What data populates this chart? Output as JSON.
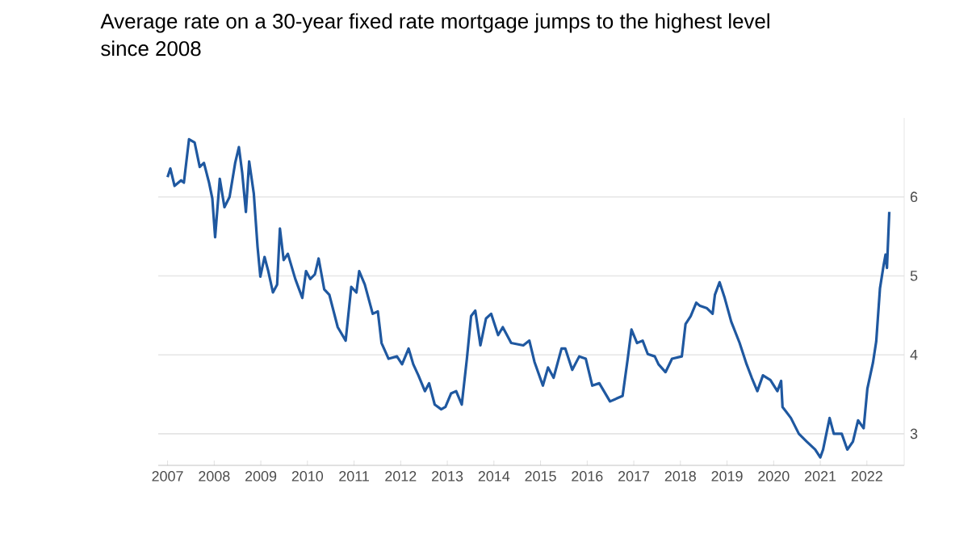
{
  "chart_data": {
    "type": "line",
    "title": "Average rate on a 30-year fixed rate mortgage jumps to the highest level since 2008",
    "xlim": [
      2006.8,
      2022.8
    ],
    "xticks": [
      2007,
      2008,
      2009,
      2010,
      2011,
      2012,
      2013,
      2014,
      2015,
      2016,
      2017,
      2018,
      2019,
      2020,
      2021,
      2022
    ],
    "ylim": [
      2.6,
      7.0
    ],
    "yticks": [
      3,
      4,
      5,
      6
    ],
    "grid": "y",
    "marker": "none",
    "line_style": "solid",
    "series": [
      {
        "color": "#1f58a0",
        "x": [
          2007.0,
          2007.06,
          2007.15,
          2007.29,
          2007.35,
          2007.46,
          2007.58,
          2007.69,
          2007.78,
          2007.89,
          2007.96,
          2008.02,
          2008.12,
          2008.22,
          2008.33,
          2008.45,
          2008.53,
          2008.6,
          2008.68,
          2008.75,
          2008.85,
          2008.93,
          2008.99,
          2009.08,
          2009.16,
          2009.26,
          2009.35,
          2009.41,
          2009.49,
          2009.58,
          2009.74,
          2009.89,
          2009.97,
          2010.06,
          2010.16,
          2010.24,
          2010.36,
          2010.47,
          2010.65,
          2010.82,
          2010.94,
          2011.05,
          2011.11,
          2011.23,
          2011.4,
          2011.51,
          2011.59,
          2011.74,
          2011.92,
          2012.03,
          2012.17,
          2012.27,
          2012.38,
          2012.52,
          2012.61,
          2012.73,
          2012.87,
          2012.96,
          2013.08,
          2013.19,
          2013.31,
          2013.42,
          2013.51,
          2013.6,
          2013.71,
          2013.83,
          2013.94,
          2014.09,
          2014.19,
          2014.37,
          2014.63,
          2014.76,
          2014.87,
          2015.05,
          2015.16,
          2015.28,
          2015.45,
          2015.53,
          2015.68,
          2015.83,
          2015.97,
          2016.11,
          2016.26,
          2016.49,
          2016.76,
          2016.87,
          2016.95,
          2017.07,
          2017.19,
          2017.3,
          2017.45,
          2017.53,
          2017.68,
          2017.82,
          2018.03,
          2018.11,
          2018.22,
          2018.34,
          2018.42,
          2018.57,
          2018.69,
          2018.74,
          2018.84,
          2018.95,
          2019.09,
          2019.27,
          2019.42,
          2019.53,
          2019.65,
          2019.77,
          2019.93,
          2020.08,
          2020.16,
          2020.19,
          2020.37,
          2020.54,
          2020.71,
          2020.89,
          2021.0,
          2021.06,
          2021.2,
          2021.29,
          2021.46,
          2021.58,
          2021.7,
          2021.81,
          2021.93,
          2022.01,
          2022.13,
          2022.2,
          2022.28,
          2022.36,
          2022.4,
          2022.43,
          2022.48
        ],
        "values": [
          6.25,
          6.36,
          6.14,
          6.21,
          6.18,
          6.73,
          6.69,
          6.38,
          6.43,
          6.18,
          5.98,
          5.49,
          6.23,
          5.87,
          6.0,
          6.43,
          6.63,
          6.31,
          5.81,
          6.45,
          6.04,
          5.37,
          4.99,
          5.24,
          5.06,
          4.79,
          4.89,
          5.6,
          5.2,
          5.28,
          4.96,
          4.72,
          5.06,
          4.96,
          5.02,
          5.22,
          4.83,
          4.76,
          4.35,
          4.18,
          4.86,
          4.79,
          5.06,
          4.89,
          4.52,
          4.55,
          4.15,
          3.95,
          3.98,
          3.88,
          4.08,
          3.88,
          3.74,
          3.54,
          3.64,
          3.37,
          3.31,
          3.34,
          3.51,
          3.54,
          3.37,
          3.95,
          4.49,
          4.56,
          4.12,
          4.46,
          4.52,
          4.25,
          4.35,
          4.15,
          4.12,
          4.18,
          3.91,
          3.61,
          3.84,
          3.71,
          4.08,
          4.08,
          3.81,
          3.98,
          3.95,
          3.61,
          3.64,
          3.41,
          3.48,
          3.95,
          4.32,
          4.15,
          4.18,
          4.01,
          3.98,
          3.88,
          3.78,
          3.95,
          3.98,
          4.39,
          4.49,
          4.66,
          4.62,
          4.59,
          4.52,
          4.76,
          4.92,
          4.72,
          4.42,
          4.15,
          3.88,
          3.71,
          3.54,
          3.74,
          3.68,
          3.54,
          3.67,
          3.34,
          3.2,
          3.0,
          2.9,
          2.8,
          2.7,
          2.8,
          3.2,
          3.0,
          3.0,
          2.8,
          2.9,
          3.17,
          3.07,
          3.57,
          3.9,
          4.17,
          4.84,
          5.14,
          5.27,
          5.1,
          5.81
        ]
      }
    ]
  }
}
